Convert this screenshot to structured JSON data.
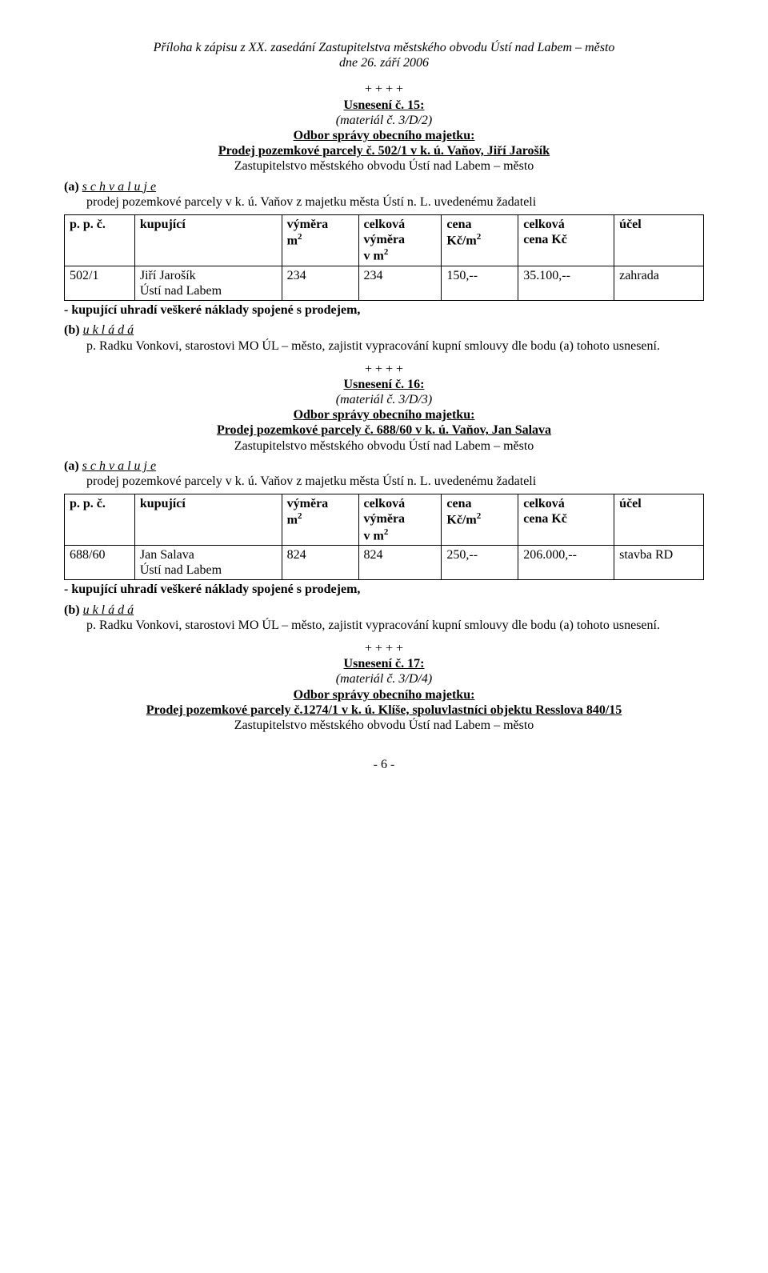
{
  "header": {
    "line1": "Příloha k zápisu z XX. zasedání Zastupitelstva městského obvodu Ústí nad Labem – město",
    "line2": "dne 26. září 2006"
  },
  "separator": "+ + + +",
  "res15": {
    "heading": "Usnesení č. 15:",
    "material": "(materiál č. 3/D/2)",
    "dept": "Odbor správy obecního majetku:",
    "subject": "Prodej pozemkové parcely č. 502/1 v k. ú. Vaňov, Jiří Jarošík",
    "body_line": "Zastupitelstvo městského obvodu Ústí nad Labem – město",
    "a_label": "(a)",
    "a_verb": "s c h v a l u j e",
    "a_text": "prodej  pozemkové parcely v k. ú. Vaňov z majetku města Ústí n. L. uvedenému žadateli",
    "table_note": "- kupující uhradí  veškeré náklady spojené s prodejem,",
    "b_label": "(b)",
    "b_verb": "u k l á d á",
    "b_text": "p. Radku Vonkovi,  starostovi MO ÚL – město, zajistit vypracování kupní smlouvy dle bodu (a) tohoto usnesení."
  },
  "table_headers": {
    "c1": "p. p. č.",
    "c2": "kupující",
    "c3a": "výměra",
    "c3b": "m",
    "c4a": "celková",
    "c4b": "výměra",
    "c4c": "v m",
    "c5a": "cena",
    "c5b": "Kč/m",
    "c6a": "celková",
    "c6b": "cena Kč",
    "c7": "účel",
    "sup2": "2"
  },
  "row15": {
    "c1": "502/1",
    "c2a": "Jiří Jarošík",
    "c2b": "Ústí nad Labem",
    "c3": "234",
    "c4": "234",
    "c5": "150,--",
    "c6": "35.100,--",
    "c7": "zahrada"
  },
  "res16": {
    "heading": "Usnesení č. 16:",
    "material": "(materiál č. 3/D/3)",
    "dept": "Odbor správy obecního majetku:",
    "subject": "Prodej  pozemkové parcely č. 688/60 v k. ú. Vaňov, Jan Salava",
    "body_line": "Zastupitelstvo městského obvodu Ústí nad Labem – město",
    "a_label": "(a)",
    "a_verb": "s c h v a l u j e",
    "a_text": "prodej  pozemkové parcely v k. ú. Vaňov z majetku města Ústí n. L. uvedenému žadateli",
    "table_note": "- kupující uhradí  veškeré náklady spojené s prodejem,",
    "b_label": "(b)",
    "b_verb": "u k l á d á",
    "b_text": "p. Radku Vonkovi,  starostovi MO ÚL – město, zajistit vypracování kupní smlouvy dle bodu (a) tohoto usnesení."
  },
  "row16": {
    "c1": "688/60",
    "c2a": "Jan Salava",
    "c2b": "Ústí nad Labem",
    "c3": "824",
    "c4": "824",
    "c5": "250,--",
    "c6": "206.000,--",
    "c7": "stavba RD"
  },
  "res17": {
    "heading": "Usnesení č. 17:",
    "material": "(materiál č. 3/D/4)",
    "dept": "Odbor správy obecního majetku:",
    "subject": "Prodej pozemkové parcely č.1274/1 v k. ú. Klíše, spoluvlastníci objektu Resslova 840/15",
    "body_line": "Zastupitelstvo městského obvodu Ústí nad Labem – město"
  },
  "page_number": "- 6 -",
  "col_widths": {
    "c1": "11%",
    "c2": "23%",
    "c3": "12%",
    "c4": "13%",
    "c5": "12%",
    "c6": "15%",
    "c7": "14%"
  }
}
